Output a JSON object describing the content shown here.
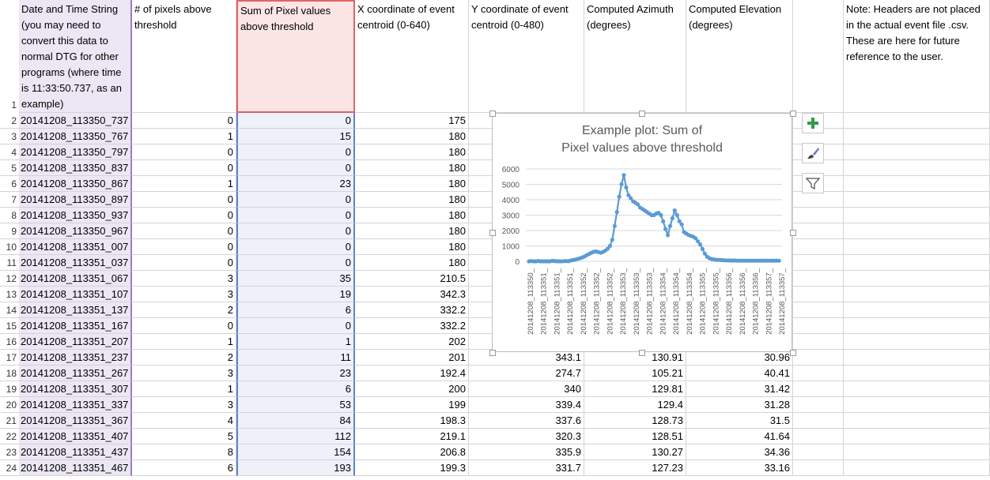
{
  "headers": {
    "a": "Date and Time String (you may need to convert this data to normal DTG for other programs (where time is 11:33:50.737, as an example)",
    "b": "# of pixels above threshold",
    "c": "Sum of Pixel values above threshold",
    "d": "X coordinate of event centroid (0-640)",
    "e": "Y coordinate of event centroid (0-480)",
    "f": "Computed Azimuth (degrees)",
    "g": "Computed Elevation (degrees)",
    "i": "Note: Headers are not placed in the actual event file .csv.  These are here for future reference to the user."
  },
  "rows": [
    {
      "n": "2",
      "a": "20141208_113350_737",
      "b": "0",
      "c": "0",
      "d": "175",
      "e": "",
      "f": "",
      "g": ""
    },
    {
      "n": "3",
      "a": "20141208_113350_767",
      "b": "1",
      "c": "15",
      "d": "180",
      "e": "",
      "f": "",
      "g": ""
    },
    {
      "n": "4",
      "a": "20141208_113350_797",
      "b": "0",
      "c": "0",
      "d": "180",
      "e": "",
      "f": "",
      "g": ""
    },
    {
      "n": "5",
      "a": "20141208_113350_837",
      "b": "0",
      "c": "0",
      "d": "180",
      "e": "",
      "f": "",
      "g": ""
    },
    {
      "n": "6",
      "a": "20141208_113350_867",
      "b": "1",
      "c": "23",
      "d": "180",
      "e": "",
      "f": "",
      "g": ""
    },
    {
      "n": "7",
      "a": "20141208_113350_897",
      "b": "0",
      "c": "0",
      "d": "180",
      "e": "",
      "f": "",
      "g": ""
    },
    {
      "n": "8",
      "a": "20141208_113350_937",
      "b": "0",
      "c": "0",
      "d": "180",
      "e": "",
      "f": "",
      "g": ""
    },
    {
      "n": "9",
      "a": "20141208_113350_967",
      "b": "0",
      "c": "0",
      "d": "180",
      "e": "",
      "f": "",
      "g": ""
    },
    {
      "n": "10",
      "a": "20141208_113351_007",
      "b": "0",
      "c": "0",
      "d": "180",
      "e": "",
      "f": "",
      "g": ""
    },
    {
      "n": "11",
      "a": "20141208_113351_037",
      "b": "0",
      "c": "0",
      "d": "180",
      "e": "",
      "f": "",
      "g": ""
    },
    {
      "n": "12",
      "a": "20141208_113351_067",
      "b": "3",
      "c": "35",
      "d": "210.5",
      "e": "",
      "f": "",
      "g": ""
    },
    {
      "n": "13",
      "a": "20141208_113351_107",
      "b": "3",
      "c": "19",
      "d": "342.3",
      "e": "",
      "f": "",
      "g": ""
    },
    {
      "n": "14",
      "a": "20141208_113351_137",
      "b": "2",
      "c": "6",
      "d": "332.2",
      "e": "",
      "f": "",
      "g": ""
    },
    {
      "n": "15",
      "a": "20141208_113351_167",
      "b": "0",
      "c": "0",
      "d": "332.2",
      "e": "",
      "f": "",
      "g": ""
    },
    {
      "n": "16",
      "a": "20141208_113351_207",
      "b": "1",
      "c": "1",
      "d": "202",
      "e": "",
      "f": "",
      "g": ""
    },
    {
      "n": "17",
      "a": "20141208_113351_237",
      "b": "2",
      "c": "11",
      "d": "201",
      "e": "343.1",
      "f": "130.91",
      "g": "30.96"
    },
    {
      "n": "18",
      "a": "20141208_113351_267",
      "b": "3",
      "c": "23",
      "d": "192.4",
      "e": "274.7",
      "f": "105.21",
      "g": "40.41"
    },
    {
      "n": "19",
      "a": "20141208_113351_307",
      "b": "1",
      "c": "6",
      "d": "200",
      "e": "340",
      "f": "129.81",
      "g": "31.42"
    },
    {
      "n": "20",
      "a": "20141208_113351_337",
      "b": "3",
      "c": "53",
      "d": "199",
      "e": "339.4",
      "f": "129.4",
      "g": "31.28"
    },
    {
      "n": "21",
      "a": "20141208_113351_367",
      "b": "4",
      "c": "84",
      "d": "198.3",
      "e": "337.6",
      "f": "128.73",
      "g": "31.5"
    },
    {
      "n": "22",
      "a": "20141208_113351_407",
      "b": "5",
      "c": "112",
      "d": "219.1",
      "e": "320.3",
      "f": "128.51",
      "g": "41.64"
    },
    {
      "n": "23",
      "a": "20141208_113351_437",
      "b": "8",
      "c": "154",
      "d": "206.8",
      "e": "335.9",
      "f": "130.27",
      "g": "34.36"
    },
    {
      "n": "24",
      "a": "20141208_113351_467",
      "b": "6",
      "c": "193",
      "d": "199.3",
      "e": "331.7",
      "f": "127.23",
      "g": "33.16"
    }
  ],
  "chart_data": {
    "type": "line",
    "title": "Example plot: Sum of Pixel values above threshold",
    "ylim": [
      0,
      6000
    ],
    "yticks": [
      "0",
      "1000",
      "2000",
      "3000",
      "4000",
      "5000",
      "6000"
    ],
    "xticklabels": [
      "20141208_113350_",
      "20141208_113351_",
      "20141208_113351_",
      "20141208_113351_",
      "20141208_113352_",
      "20141208_113352_",
      "20141208_113352_",
      "20141208_113353_",
      "20141208_113353_",
      "20141208_113353_",
      "20141208_113354_",
      "20141208_113354_",
      "20141208_113354_",
      "20141208_113355_",
      "20141208_113355_",
      "20141208_113356_",
      "20141208_113356_",
      "20141208_113356_",
      "20141208_113357_",
      "20141208_113357_"
    ],
    "values": [
      0,
      15,
      0,
      0,
      23,
      0,
      0,
      0,
      0,
      0,
      35,
      19,
      6,
      0,
      1,
      11,
      23,
      6,
      53,
      84,
      112,
      154,
      193,
      250,
      320,
      400,
      480,
      560,
      620,
      640,
      600,
      560,
      610,
      700,
      820,
      1000,
      1400,
      2300,
      3200,
      4200,
      5000,
      5600,
      4800,
      4300,
      4100,
      3900,
      3800,
      3700,
      3500,
      3400,
      3300,
      3200,
      3100,
      3000,
      3000,
      3100,
      3150,
      3000,
      2600,
      2100,
      1700,
      2300,
      2800,
      3300,
      3000,
      2600,
      2400,
      1900,
      1800,
      1700,
      1650,
      1600,
      1500,
      1300,
      1100,
      800,
      500,
      300,
      200,
      150,
      120,
      100,
      90,
      80,
      70,
      60,
      60,
      50,
      50,
      50,
      40,
      40,
      40,
      40,
      40,
      40,
      40,
      40,
      40,
      40,
      40,
      40,
      40,
      40,
      40,
      40,
      40,
      40,
      40
    ]
  },
  "chart_tools": {
    "add": "chart-elements-icon",
    "style": "paintbrush-icon",
    "filter": "filter-icon"
  }
}
